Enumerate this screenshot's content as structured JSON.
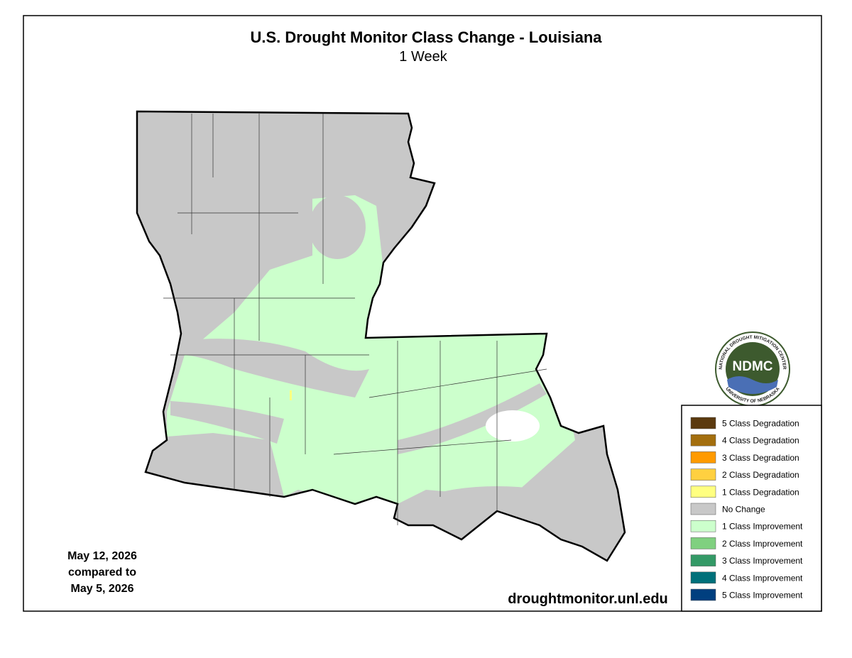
{
  "header": {
    "title": "U.S. Drought Monitor Class Change - Louisiana",
    "subtitle": "1 Week"
  },
  "legend": {
    "items": [
      {
        "label": "5 Class Degradation",
        "color": "#5b3a0f"
      },
      {
        "label": "4 Class Degradation",
        "color": "#a36e0e"
      },
      {
        "label": "3 Class Degradation",
        "color": "#ff9a00"
      },
      {
        "label": "2 Class Degradation",
        "color": "#ffd040"
      },
      {
        "label": "1 Class Degradation",
        "color": "#ffff80"
      },
      {
        "label": "No Change",
        "color": "#c8c8c8"
      },
      {
        "label": "1 Class Improvement",
        "color": "#ccffcc"
      },
      {
        "label": "2 Class Improvement",
        "color": "#80d080"
      },
      {
        "label": "3 Class Improvement",
        "color": "#339966"
      },
      {
        "label": "4 Class Improvement",
        "color": "#00707a"
      },
      {
        "label": "5 Class Improvement",
        "color": "#003f7f"
      }
    ]
  },
  "date_note": {
    "lines": [
      "May 12, 2026",
      "compared to",
      "May 5, 2026"
    ]
  },
  "source": "droughtmonitor.unl.edu",
  "logo": {
    "abbr": "NDMC",
    "top_text": "NATIONAL DROUGHT MITIGATION CENTER",
    "bottom_text": "UNIVERSITY OF NEBRASKA"
  }
}
